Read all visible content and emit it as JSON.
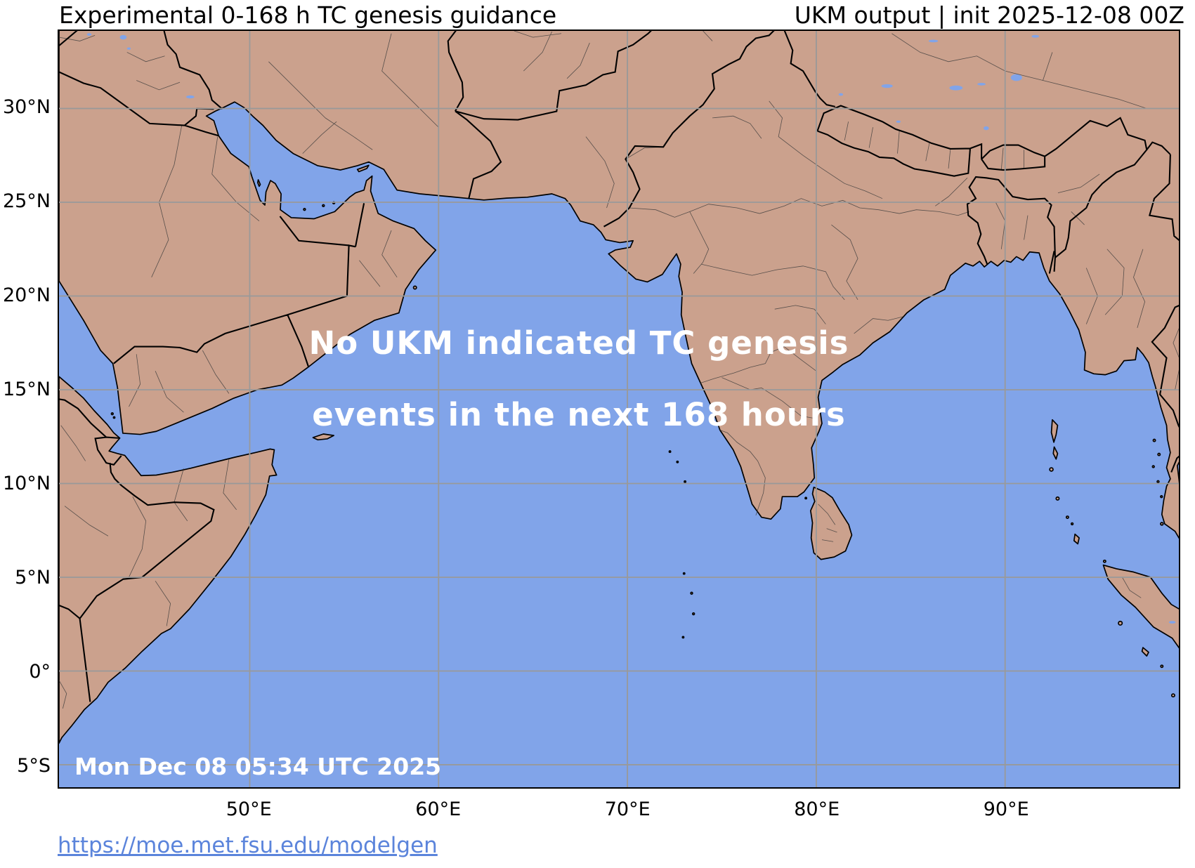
{
  "header": {
    "title_left": "Experimental 0-168 h TC genesis guidance",
    "title_right": "UKM output | init 2025-12-08 00Z"
  },
  "map": {
    "message_line1": "No UKM indicated TC genesis",
    "message_line2": "events in the next 168 hours",
    "timestamp": "Mon Dec 08 05:34 UTC 2025",
    "lat_ticks": [
      {
        "deg": 30,
        "label": "30°N"
      },
      {
        "deg": 25,
        "label": "25°N"
      },
      {
        "deg": 20,
        "label": "20°N"
      },
      {
        "deg": 15,
        "label": "15°N"
      },
      {
        "deg": 10,
        "label": "10°N"
      },
      {
        "deg": 5,
        "label": "5°N"
      },
      {
        "deg": 0,
        "label": "0°"
      },
      {
        "deg": -5,
        "label": "5°S"
      }
    ],
    "lon_ticks": [
      {
        "deg": 50,
        "label": "50°E"
      },
      {
        "deg": 60,
        "label": "60°E"
      },
      {
        "deg": 70,
        "label": "70°E"
      },
      {
        "deg": 80,
        "label": "80°E"
      },
      {
        "deg": 90,
        "label": "90°E"
      }
    ],
    "colors": {
      "land": "#cba18d",
      "ocean": "#81a4e9",
      "gridline": "#999999",
      "coastline": "#000000",
      "country_border": "#000000",
      "state_border": "#3a3a3a"
    }
  },
  "footer": {
    "url": "https://moe.met.fsu.edu/modelgen",
    "link_color": "#5b84db"
  }
}
